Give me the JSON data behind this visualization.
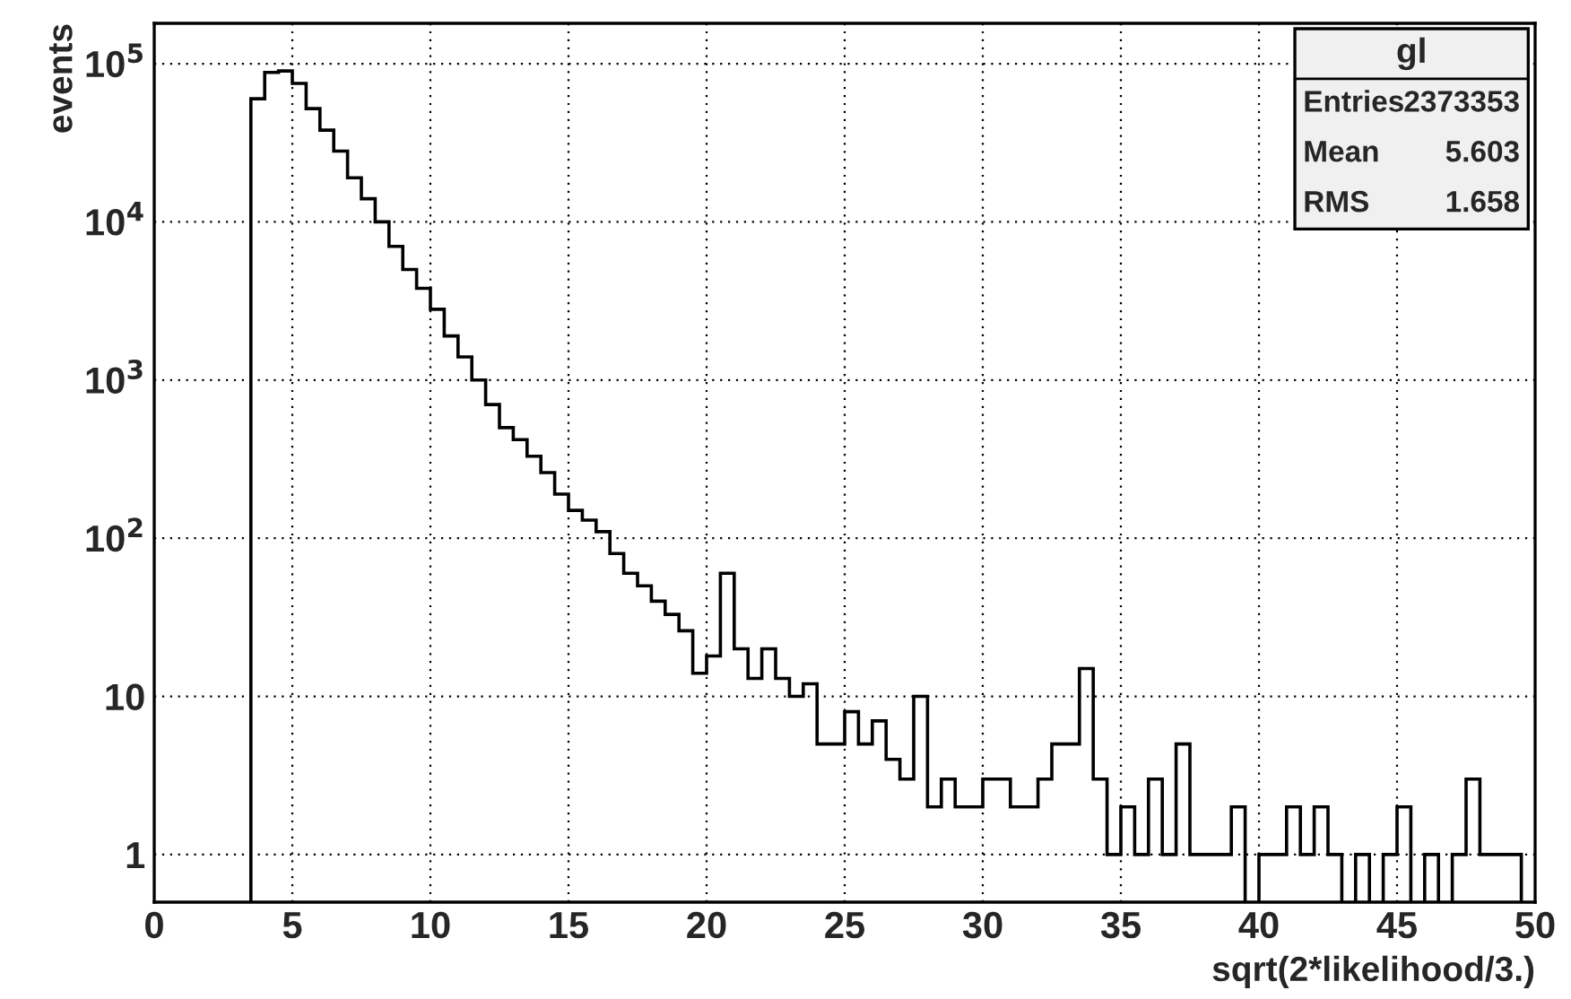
{
  "chart_data": {
    "type": "histogram",
    "xlabel": "sqrt(2*likelihood/3.)",
    "ylabel": "events",
    "color": "#000000",
    "log": "y",
    "grid": true,
    "bins": [
      3.5,
      4,
      4.5,
      5,
      5.5,
      6,
      6.5,
      7,
      7.5,
      8,
      8.5,
      9,
      9.5,
      10,
      10.5,
      11,
      11.5,
      12,
      12.5,
      13,
      13.5,
      14,
      14.5,
      15,
      15.5,
      16,
      16.5,
      17,
      17.5,
      18,
      18.5,
      19,
      19.5,
      20,
      20.5,
      21,
      21.5,
      22,
      22.5,
      23,
      23.5,
      24,
      24.5,
      25,
      25.5,
      26,
      26.5,
      27,
      27.5,
      28,
      28.5,
      29,
      29.5,
      30,
      30.5,
      31,
      31.5,
      32,
      32.5,
      33,
      33.5,
      34,
      34.5,
      35,
      35.5,
      36,
      36.5,
      37,
      37.5,
      38,
      38.5,
      39,
      39.5,
      40,
      40.5,
      41,
      41.5,
      42,
      42.5,
      43,
      43.5,
      44,
      44.5,
      45,
      45.5,
      46,
      46.5,
      47,
      47.5,
      48,
      48.5,
      49,
      49.5
    ],
    "values": [
      60000,
      88000,
      90000,
      75000,
      52000,
      38000,
      28000,
      19000,
      14000,
      10000,
      7000,
      5000,
      3800,
      2800,
      1900,
      1400,
      1000,
      700,
      500,
      420,
      330,
      260,
      190,
      150,
      130,
      110,
      80,
      60,
      50,
      40,
      33,
      26,
      14,
      18,
      60,
      20,
      13,
      20,
      13,
      10,
      12,
      5,
      5,
      8,
      5,
      7,
      4,
      3,
      10,
      2,
      3,
      2,
      2,
      3,
      3,
      2,
      2,
      3,
      5,
      5,
      15,
      3,
      1,
      2,
      1,
      3,
      1,
      5,
      1,
      1,
      1,
      2,
      null,
      1,
      1,
      2,
      1,
      2,
      1,
      null,
      1,
      null,
      1,
      2,
      null,
      1,
      null,
      1,
      3,
      1,
      1,
      1
    ],
    "xlim": [
      0,
      50
    ],
    "xticks": [
      0,
      5,
      10,
      15,
      20,
      25,
      30,
      35,
      40,
      45,
      50
    ],
    "ylim": [
      0.5,
      180000
    ],
    "yticks": [
      1,
      10,
      {
        "value": 100,
        "label": "10$^{2}$"
      },
      {
        "value": 1000,
        "label": "10$^{3}$"
      },
      {
        "value": 10000,
        "label": "10$^{4}$"
      },
      {
        "value": 100000,
        "label": "10$^{5}$"
      }
    ],
    "annotations": [
      "gl",
      "Entries 2373353",
      "Mean 5.603",
      "RMS 1.658"
    ]
  }
}
